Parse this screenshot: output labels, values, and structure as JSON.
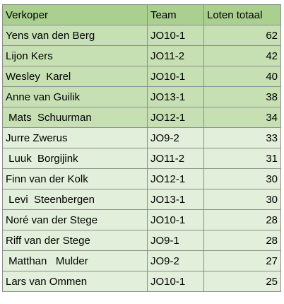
{
  "table": {
    "columns": [
      "Verkoper",
      "Team",
      "Loten totaal"
    ],
    "colors": {
      "header": "#a9d08e",
      "highlight": "#c6e0b4",
      "normal": "#e2efda",
      "border": "#8c8c8c"
    },
    "rows": [
      {
        "seller": "Yens van den Berg",
        "team": "JO10-1",
        "total": "62",
        "highlight": true
      },
      {
        "seller": "Lijon Kers",
        "team": "JO11-2",
        "total": "42",
        "highlight": true
      },
      {
        "seller": "Wesley  Karel",
        "team": "JO10-1",
        "total": "40",
        "highlight": true
      },
      {
        "seller": "Anne van Guilik",
        "team": "JO13-1",
        "total": "38",
        "highlight": true
      },
      {
        "seller": " Mats  Schuurman",
        "team": "JO12-1",
        "total": "34",
        "highlight": true
      },
      {
        "seller": "Jurre Zwerus",
        "team": "JO9-2",
        "total": "33",
        "highlight": false
      },
      {
        "seller": " Luuk  Borgijink",
        "team": "JO11-2",
        "total": "31",
        "highlight": false
      },
      {
        "seller": "Finn van der Kolk",
        "team": "JO12-1",
        "total": "30",
        "highlight": false
      },
      {
        "seller": " Levi  Steenbergen",
        "team": "JO13-1",
        "total": "30",
        "highlight": false
      },
      {
        "seller": "Noré van der Stege",
        "team": "JO10-1",
        "total": "28",
        "highlight": false
      },
      {
        "seller": "Riff van der Stege",
        "team": "JO9-1",
        "total": "28",
        "highlight": false
      },
      {
        "seller": " Matthan   Mulder",
        "team": "JO9-2",
        "total": "27",
        "highlight": false
      },
      {
        "seller": "Lars van Ommen",
        "team": "JO10-1",
        "total": "25",
        "highlight": false
      }
    ]
  }
}
